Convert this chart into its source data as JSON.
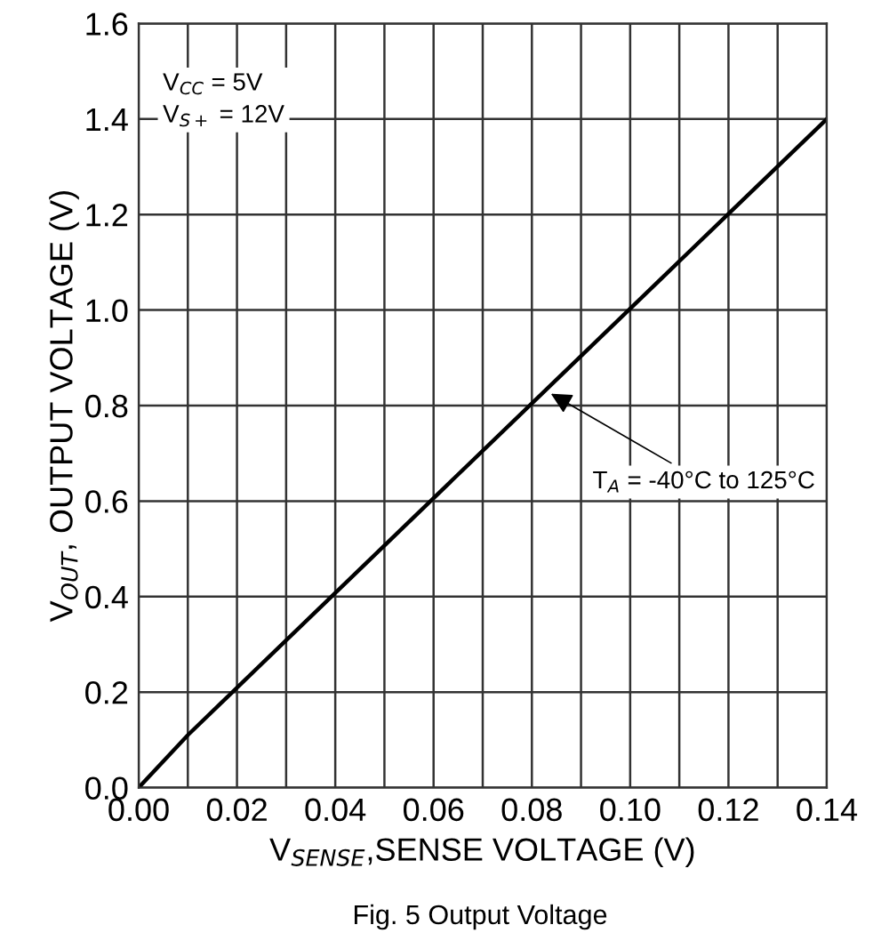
{
  "chart_data": {
    "type": "line",
    "xlabel": "V$_{SENSE}$,SENSE VOLTAGE (V)",
    "ylabel": "V$_{OUT}$, OUTPUT VOLTAGE (V)",
    "x": [
      0,
      0.01,
      0.14
    ],
    "series": [
      {
        "color": "#000000",
        "values": [
          0,
          0.11,
          1.4
        ]
      }
    ],
    "xlim": [
      0,
      0.14
    ],
    "xticks": [
      {
        "value": 0,
        "label": "0.00"
      },
      {
        "value": 0.01,
        "label": null
      },
      0.02,
      {
        "value": 0.03,
        "label": null
      },
      0.04,
      {
        "value": 0.05,
        "label": null
      },
      0.06,
      {
        "value": 0.07,
        "label": null
      },
      0.08,
      {
        "value": 0.09,
        "label": null
      },
      {
        "value": 0.1,
        "label": "0.10"
      },
      {
        "value": 0.11,
        "label": null
      },
      0.12,
      {
        "value": 0.13,
        "label": null
      },
      0.14
    ],
    "ylim": [
      0,
      1.6
    ],
    "yticks": [
      {
        "value": 0,
        "label": "0.0"
      },
      0.2,
      0.4,
      0.6,
      0.8,
      {
        "value": 1.0,
        "label": "1.0"
      },
      1.2,
      1.4,
      1.6
    ],
    "grid": true,
    "annotations": [
      "V$_{CC}$ = 5V\nV$_{S+}$ = 12V",
      {
        "text": "T$_{A}$ = -40°C to 125°C",
        "x": 0.083,
        "y": 0.83
      },
      "Fig. 5 Output Voltage"
    ]
  }
}
